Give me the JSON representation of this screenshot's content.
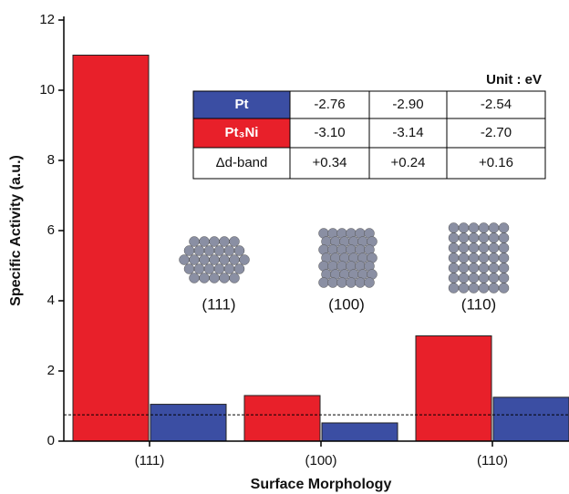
{
  "chart_data": {
    "type": "bar",
    "x_label": "Surface Morphology",
    "y_label": "Specific Activity (a.u.)",
    "categories": [
      "(111)",
      "(100)",
      "(110)"
    ],
    "series": [
      {
        "name": "Pt₃Ni",
        "color": "#e8202a",
        "values": [
          11.0,
          1.3,
          3.0
        ]
      },
      {
        "name": "Pt",
        "color": "#3b4ea3",
        "values": [
          1.05,
          0.52,
          1.25
        ]
      }
    ],
    "ylim": [
      0,
      12
    ],
    "yticks": [
      0,
      2,
      4,
      6,
      8,
      10,
      12
    ],
    "reference_line": 0.75,
    "inset_table": {
      "unit": "Unit : eV",
      "series_rows": [
        [
          "-3.10",
          "-3.14",
          "-2.70"
        ],
        [
          "-2.76",
          "-2.90",
          "-2.54"
        ]
      ],
      "delta_label": "Δd-band",
      "delta_row": [
        "+0.34",
        "+0.24",
        "+0.16"
      ]
    },
    "structure_labels": [
      "(111)",
      "(100)",
      "(110)"
    ]
  }
}
